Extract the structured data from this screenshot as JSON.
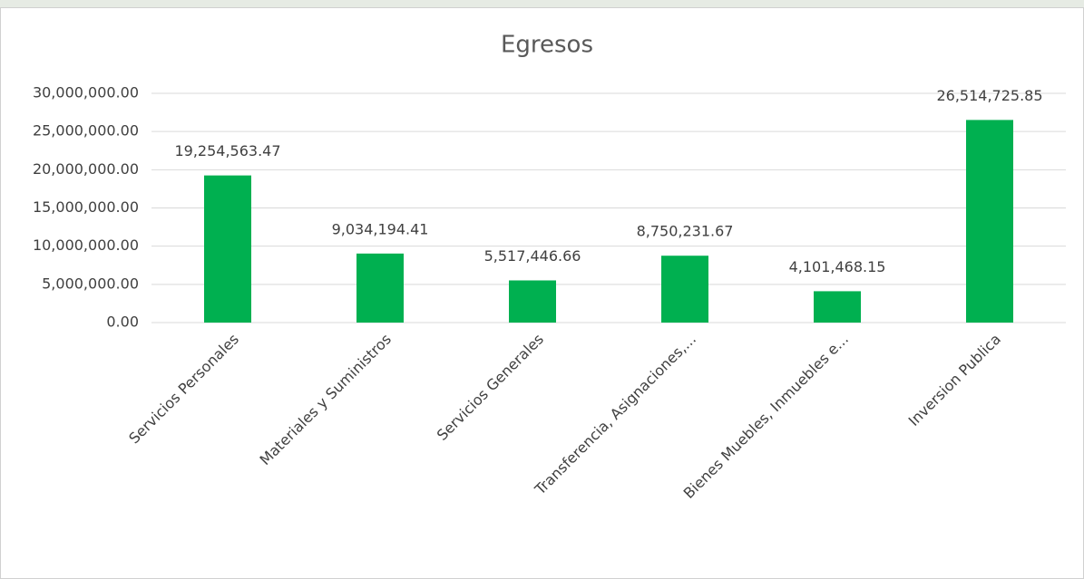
{
  "chart_data": {
    "type": "bar",
    "title": "Egresos",
    "categories": [
      "Servicios Personales",
      "Materiales y Suministros",
      "Servicios Generales",
      "Transferencia, Asignaciones,...",
      "Bienes Muebles, Inmuebles e...",
      "Inversion Publica"
    ],
    "values": [
      19254563.47,
      9034194.41,
      5517446.66,
      8750231.67,
      4101468.15,
      26514725.85
    ],
    "value_labels": [
      "19,254,563.47",
      "9,034,194.41",
      "5,517,446.66",
      "8,750,231.67",
      "4,101,468.15",
      "26,514,725.85"
    ],
    "color": "#00b050",
    "ylim": [
      0,
      30000000
    ],
    "yticks": [
      {
        "value": 0,
        "label": "0.00"
      },
      {
        "value": 5000000,
        "label": "5,000,000.00"
      },
      {
        "value": 10000000,
        "label": "10,000,000.00"
      },
      {
        "value": 15000000,
        "label": "15,000,000.00"
      },
      {
        "value": 20000000,
        "label": "20,000,000.00"
      },
      {
        "value": 25000000,
        "label": "25,000,000.00"
      },
      {
        "value": 30000000,
        "label": "30,000,000.00"
      }
    ],
    "grid": true
  }
}
